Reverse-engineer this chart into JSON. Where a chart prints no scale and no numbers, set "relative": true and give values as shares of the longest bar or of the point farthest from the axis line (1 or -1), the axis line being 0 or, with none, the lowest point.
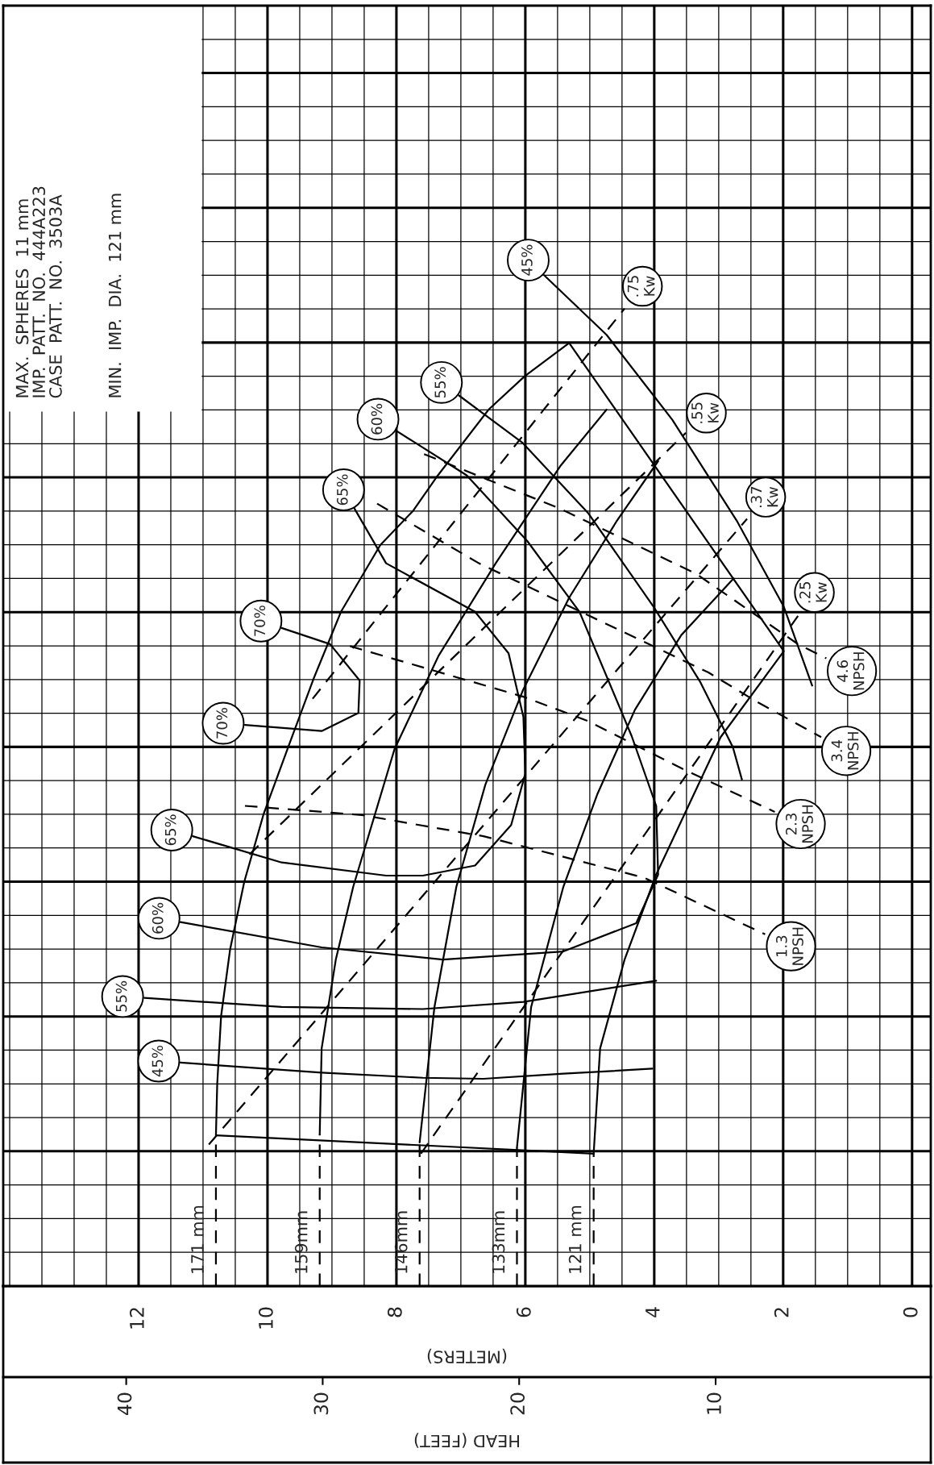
{
  "chart_data": {
    "type": "line",
    "relative": true,
    "xlabel": "(METERS)",
    "x2label": "HEAD (FEET)",
    "xlim": [
      14.1,
      -0.29
    ],
    "xticks": [
      0,
      2,
      4,
      6,
      8,
      10,
      12
    ],
    "x2lim": [
      46.26,
      -0.95
    ],
    "x2ticks": [
      10,
      20,
      30,
      40
    ],
    "grid": true,
    "tick_labels": "x",
    "series": [
      {
        "color": "#000000",
        "line_style": "solid",
        "x": [
          10.8,
          10.78,
          10.72,
          10.58,
          10.36,
          10.06,
          9.68,
          9.29,
          8.86,
          8.25,
          7.74,
          7.38,
          6.57,
          6.01,
          5.32,
          1.99,
          2.97,
          3.97,
          4.46,
          4.84,
          4.94
        ],
        "values": [
          0.149,
          0.2,
          0.267,
          0.333,
          0.4,
          0.467,
          0.533,
          0.6,
          0.667,
          0.733,
          0.767,
          0.8,
          0.867,
          0.9,
          0.933,
          0.628,
          0.543,
          0.407,
          0.323,
          0.235,
          0.131
        ]
      },
      {
        "color": "#000000",
        "line_style": "solid",
        "x": [
          10.8,
          4.94
        ],
        "values": [
          0.149,
          0.131
        ]
      },
      {
        "name": "171 mm",
        "color": "#000000",
        "line_style": "dashed",
        "x": [
          10.8,
          10.8
        ],
        "values": [
          0,
          0.149
        ]
      },
      {
        "name": "159mm",
        "color": "#000000",
        "line_style": "dashed",
        "x": [
          9.19,
          9.19
        ],
        "values": [
          0,
          0.15
        ]
      },
      {
        "name": "146mm",
        "color": "#000000",
        "line_style": "dashed",
        "x": [
          7.64,
          7.64
        ],
        "values": [
          0,
          0.142
        ]
      },
      {
        "name": "133mm",
        "color": "#000000",
        "line_style": "dashed",
        "x": [
          6.13,
          6.13
        ],
        "values": [
          0,
          0.137
        ]
      },
      {
        "name": "121 mm",
        "color": "#000000",
        "line_style": "dashed",
        "x": [
          4.94,
          4.94
        ],
        "values": [
          0,
          0.131
        ]
      },
      {
        "color": "#000000",
        "line_style": "solid",
        "x": [
          9.19,
          9.16,
          8.94,
          8.67,
          8.03,
          7.35,
          6.46,
          5.46,
          4.74
        ],
        "values": [
          0.15,
          0.235,
          0.323,
          0.395,
          0.531,
          0.623,
          0.715,
          0.811,
          0.867
        ]
      },
      {
        "color": "#000000",
        "line_style": "solid",
        "x": [
          7.64,
          7.41,
          7.07,
          6.62,
          6.04,
          5.32,
          4.59,
          3.94
        ],
        "values": [
          0.142,
          0.276,
          0.395,
          0.496,
          0.589,
          0.681,
          0.756,
          0.816
        ]
      },
      {
        "color": "#000000",
        "line_style": "solid",
        "x": [
          6.13,
          5.91,
          5.41,
          4.88,
          4.3,
          3.58,
          2.77
        ],
        "values": [
          0.137,
          0.276,
          0.395,
          0.487,
          0.57,
          0.644,
          0.7
        ]
      },
      {
        "color": "#000000",
        "line_style": "solid",
        "x": [
          11.35,
          9.16,
          7.59,
          6.65,
          5.41,
          4.03
        ],
        "values": [
          0.221,
          0.211,
          0.206,
          0.205,
          0.21,
          0.215
        ]
      },
      {
        "color": "#000000",
        "line_style": "solid",
        "x": [
          5.71,
          4.74,
          3.72,
          2.71,
          1.99,
          1.55
        ],
        "values": [
          1.0,
          0.941,
          0.857,
          0.756,
          0.672,
          0.594
        ]
      },
      {
        "color": "#000000",
        "line_style": "solid",
        "x": [
          11.91,
          9.78,
          7.59,
          6.03,
          3.97
        ],
        "values": [
          0.285,
          0.276,
          0.274,
          0.281,
          0.302
        ]
      },
      {
        "color": "#000000",
        "line_style": "solid",
        "x": [
          7.03,
          6.04,
          5.03,
          4.01,
          3.29,
          2.78,
          2.64
        ],
        "values": [
          0.881,
          0.834,
          0.765,
          0.672,
          0.598,
          0.533,
          0.501
        ]
      },
      {
        "color": "#000000",
        "line_style": "solid",
        "x": [
          8.0,
          6.91,
          5.97,
          5.16,
          4.35,
          3.97,
          3.94,
          4.28,
          5.41,
          7.28,
          9.16,
          11.35
        ],
        "values": [
          0.846,
          0.802,
          0.737,
          0.667,
          0.544,
          0.475,
          0.407,
          0.359,
          0.331,
          0.323,
          0.335,
          0.36
        ]
      },
      {
        "color": "#000000",
        "line_style": "solid",
        "x": [
          8.65,
          8.16,
          6.78,
          6.26,
          6.03,
          6.0,
          6.22,
          6.78,
          7.59,
          8.16,
          9.78,
          11.16
        ],
        "values": [
          0.769,
          0.715,
          0.667,
          0.626,
          0.563,
          0.507,
          0.456,
          0.416,
          0.406,
          0.406,
          0.419,
          0.445
        ]
      },
      {
        "color": "#000000",
        "line_style": "solid",
        "x": [
          9.78,
          9.03,
          8.57,
          8.59,
          9.16,
          10.35
        ],
        "values": [
          0.651,
          0.635,
          0.599,
          0.567,
          0.549,
          0.555
        ]
      },
      {
        "color": "#000000",
        "line_style": "dashed",
        "x": [
          9.3,
          4.46
        ],
        "values": [
          0.581,
          0.967
        ]
      },
      {
        "color": "#000000",
        "line_style": "dashed",
        "x": [
          10.28,
          3.51
        ],
        "values": [
          0.427,
          0.844
        ]
      },
      {
        "color": "#000000",
        "line_style": "dashed",
        "x": [
          10.91,
          2.56
        ],
        "values": [
          0.14,
          0.759
        ]
      },
      {
        "color": "#000000",
        "line_style": "dashed",
        "x": [
          7.62,
          1.77
        ],
        "values": [
          0.131,
          0.663
        ]
      },
      {
        "color": "#000000",
        "line_style": "dashed",
        "x": [
          10.35,
          8.54,
          6.65,
          4.16,
          2.28
        ],
        "values": [
          0.475,
          0.466,
          0.445,
          0.404,
          0.348
        ]
      },
      {
        "color": "#000000",
        "line_style": "dashed",
        "x": [
          8.72,
          6.03,
          5.03,
          3.54,
          2.13
        ],
        "values": [
          0.633,
          0.583,
          0.559,
          0.511,
          0.469
        ]
      },
      {
        "color": "#000000",
        "line_style": "dashed",
        "x": [
          8.3,
          6.72,
          3.16,
          2.41,
          1.41
        ],
        "values": [
          0.774,
          0.715,
          0.607,
          0.578,
          0.543
        ]
      },
      {
        "color": "#000000",
        "line_style": "dashed",
        "x": [
          7.57,
          5.46,
          3.36,
          1.77,
          1.33
        ],
        "values": [
          0.823,
          0.769,
          0.705,
          0.635,
          0.621
        ]
      }
    ],
    "annotations": [
      "MAX.  SPHERES  11 mm",
      "IMP.  PATT.  NO.  444A223",
      "CASE  PATT.  NO.  3503A",
      "MIN.  IMP.  DIA.  121 mm",
      {
        "text": "45%",
        "x": 5.71,
        "y": 1.0
      },
      {
        "text": "55%",
        "x": 7.03,
        "y": 0.881
      },
      {
        "text": "60%",
        "x": 8.0,
        "y": 0.846
      },
      {
        "text": "65%",
        "x": 8.65,
        "y": 0.769
      },
      {
        "text": "70%",
        "x": 9.78,
        "y": 0.651
      },
      {
        "text": "70%",
        "x": 10.35,
        "y": 0.555
      },
      {
        "text": "65%",
        "x": 11.16,
        "y": 0.445
      },
      {
        "text": "60%",
        "x": 11.35,
        "y": 0.36
      },
      {
        "text": "55%",
        "x": 11.91,
        "y": 0.285
      },
      {
        "text": "45%",
        "x": 11.35,
        "y": 0.221
      },
      {
        "text": ".75\nKw",
        "x": 4.46,
        "y": 0.967
      },
      {
        "text": ".55\nKw",
        "x": 3.51,
        "y": 0.844
      },
      {
        "text": ".37\nKw",
        "x": 2.56,
        "y": 0.759
      },
      {
        "text": ".25\nKw",
        "x": 1.77,
        "y": 0.663
      },
      {
        "text": "4.6\nNPSH",
        "x": 1.33,
        "y": 0.621
      },
      {
        "text": "3.4\nNPSH",
        "x": 1.41,
        "y": 0.543
      },
      {
        "text": "2.3\nNPSH",
        "x": 2.13,
        "y": 0.469
      },
      {
        "text": "1.3\nNPSH",
        "x": 2.28,
        "y": 0.348
      }
    ]
  }
}
